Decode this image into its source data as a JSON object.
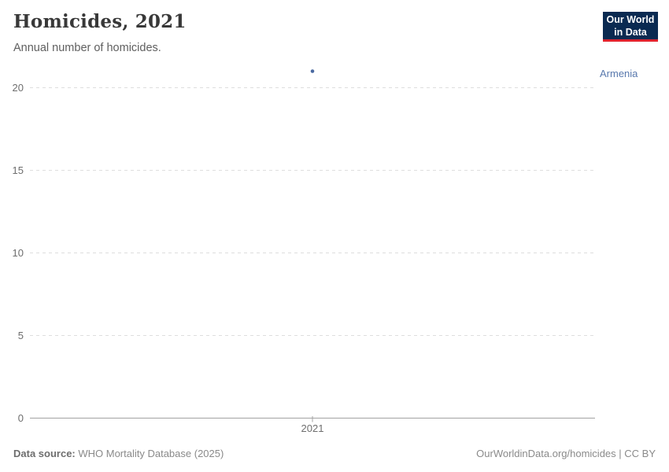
{
  "header": {
    "title": "Homicides, 2021",
    "subtitle": "Annual number of homicides.",
    "logo": {
      "line1": "Our World",
      "line2": "in Data"
    }
  },
  "chart_data": {
    "type": "scatter",
    "title": "Homicides, 2021",
    "subtitle": "Annual number of homicides.",
    "series": [
      {
        "name": "Armenia",
        "x": [
          2021
        ],
        "values": [
          21
        ]
      }
    ],
    "entity_label": "Armenia",
    "xticks": [
      2021
    ],
    "yticks": [
      0,
      5,
      10,
      15,
      20
    ],
    "ylim": [
      0,
      20
    ],
    "xlabel": "",
    "ylabel": "",
    "grid": true,
    "legend_position": "right-of-point"
  },
  "colors": {
    "accent": "#4a69a0",
    "entity_label": "#5878ad",
    "gridline": "#dedede",
    "axis_line": "#a3a3a3",
    "tick_label": "#6e6e6e",
    "logo_bg": "#0a2a51",
    "logo_stripe": "#e0232e"
  },
  "footer": {
    "source_label": "Data source:",
    "source_value": " WHO Mortality Database (2025)",
    "credit": "OurWorldinData.org/homicides | CC BY"
  }
}
